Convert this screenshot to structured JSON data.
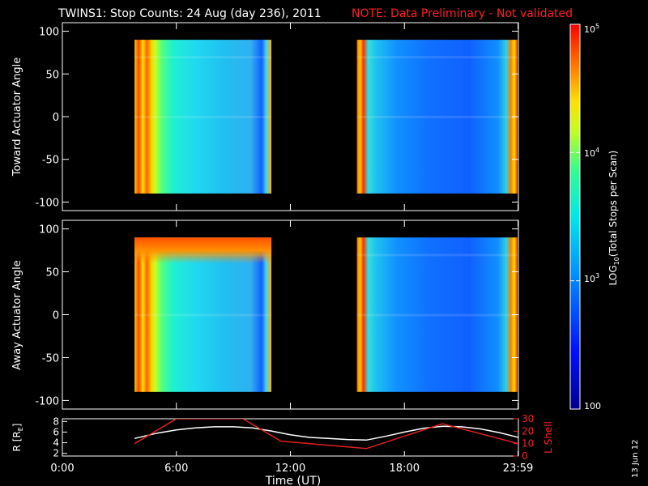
{
  "title": "TWINS1: Stop Counts: 24 Aug (day 236), 2011",
  "note": "NOTE: Data Preliminary - Not validated",
  "stamp": "13 Jun 12",
  "colors": {
    "background": "#000000",
    "foreground": "#ffffff",
    "note": "#ff2020",
    "lshell": "#e02020"
  },
  "chart_data": [
    {
      "type": "heatmap",
      "name": "toward",
      "ylabel": "Toward Actuator Angle",
      "ylim": [
        -110,
        110
      ],
      "yticks": [
        100,
        50,
        0,
        -50,
        -100
      ],
      "xlim": [
        0,
        24
      ],
      "data_bands": [
        [
          3.8,
          11.0
        ],
        [
          15.5,
          23.95
        ]
      ],
      "angle_range": [
        -90,
        90
      ]
    },
    {
      "type": "heatmap",
      "name": "away",
      "ylabel": "Away Actuator Angle",
      "ylim": [
        -110,
        110
      ],
      "yticks": [
        100,
        50,
        0,
        -50,
        -100
      ],
      "xlim": [
        0,
        24
      ],
      "data_bands": [
        [
          3.8,
          11.0
        ],
        [
          15.5,
          23.95
        ]
      ],
      "angle_range": [
        -90,
        90
      ]
    },
    {
      "type": "line",
      "name": "ephemeris",
      "xlabel": "Time (UT)",
      "xticks": [
        "0:00",
        "6:00",
        "12:00",
        "18:00",
        "23:59"
      ],
      "xtick_values": [
        0,
        6,
        12,
        18,
        23.98
      ],
      "ylabel_left": "R [R",
      "ylabel_left_sub": "E",
      "ylabel_left_end": "]",
      "yticks_left": [
        2,
        4,
        6,
        8
      ],
      "ylim_left": [
        1.5,
        8.5
      ],
      "ylabel_right": "L Shell",
      "yticks_right": [
        0,
        10,
        20,
        30
      ],
      "ylim_right": [
        0,
        30
      ],
      "series": [
        {
          "axis": "left",
          "x": [
            3.8,
            5,
            6,
            7,
            8,
            9,
            10,
            11,
            12,
            13,
            14,
            15,
            16,
            17,
            18,
            19,
            20,
            21,
            22,
            23,
            24
          ],
          "y": [
            4.8,
            5.8,
            6.4,
            6.8,
            7.0,
            7.0,
            6.8,
            6.2,
            5.5,
            5.0,
            4.8,
            4.6,
            4.5,
            5.2,
            6.0,
            6.7,
            7.1,
            7.0,
            6.6,
            5.9,
            5.0
          ]
        },
        {
          "axis": "right",
          "x": [
            3.8,
            6,
            9.5,
            11.5,
            16,
            20,
            24
          ],
          "y": [
            10,
            30,
            30,
            12,
            6,
            26,
            10
          ]
        }
      ]
    },
    {
      "type": "colorbar",
      "scale": "log",
      "label_prefix": "LOG",
      "label_sub": "10",
      "label_suffix": "(Total Stops per Scan)",
      "tick_bases": [
        "10",
        "10",
        "10"
      ],
      "tick_exponents": [
        "5",
        "4",
        "3"
      ],
      "tick_values": [
        100000,
        10000,
        1000
      ],
      "bottom_label": "100",
      "range": [
        100,
        100000
      ]
    }
  ]
}
